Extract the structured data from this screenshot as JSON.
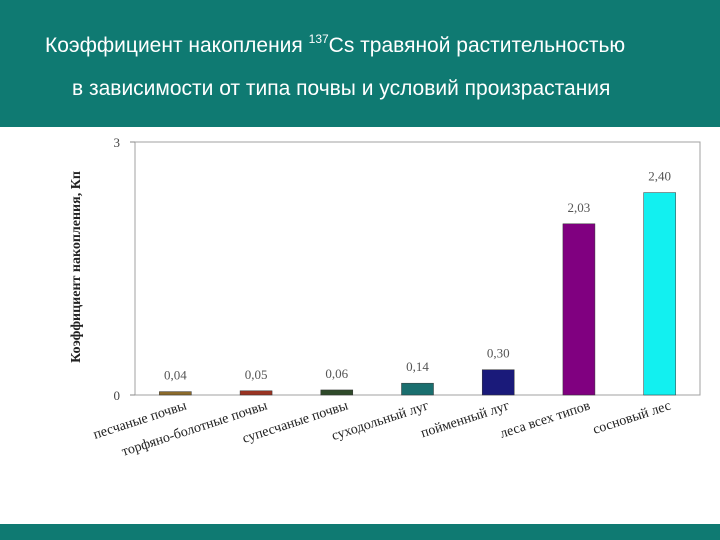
{
  "slide": {
    "title_line1_prefix": "Коэффициент накопления",
    "title_sup": "137",
    "title_line1_suffix": "Cs травяной растительностью",
    "title_line2": "в зависимости от типа почвы и условий произрастания",
    "colors": {
      "header_bg": "#0f7a72"
    }
  },
  "chart_data": {
    "type": "bar",
    "title": "",
    "xlabel": "",
    "ylabel": "Коэффициент накопления, Кп",
    "ylim": [
      0,
      3
    ],
    "yticks": [
      0,
      3
    ],
    "grid": false,
    "categories": [
      "песчаные почвы",
      "торфяно-болотные почвы",
      "супесчаные почвы",
      "суходольный луг",
      "пойменный луг",
      "леса всех типов",
      "сосновый лес"
    ],
    "values": [
      0.04,
      0.05,
      0.06,
      0.14,
      0.3,
      2.03,
      2.4
    ],
    "value_labels": [
      "0,04",
      "0,05",
      "0,06",
      "0,14",
      "0,30",
      "2,03",
      "2,40"
    ],
    "colors": [
      "#8b6a2b",
      "#993322",
      "#2f4a2a",
      "#1a6f6f",
      "#1a1a7a",
      "#800080",
      "#12f0f0"
    ]
  }
}
